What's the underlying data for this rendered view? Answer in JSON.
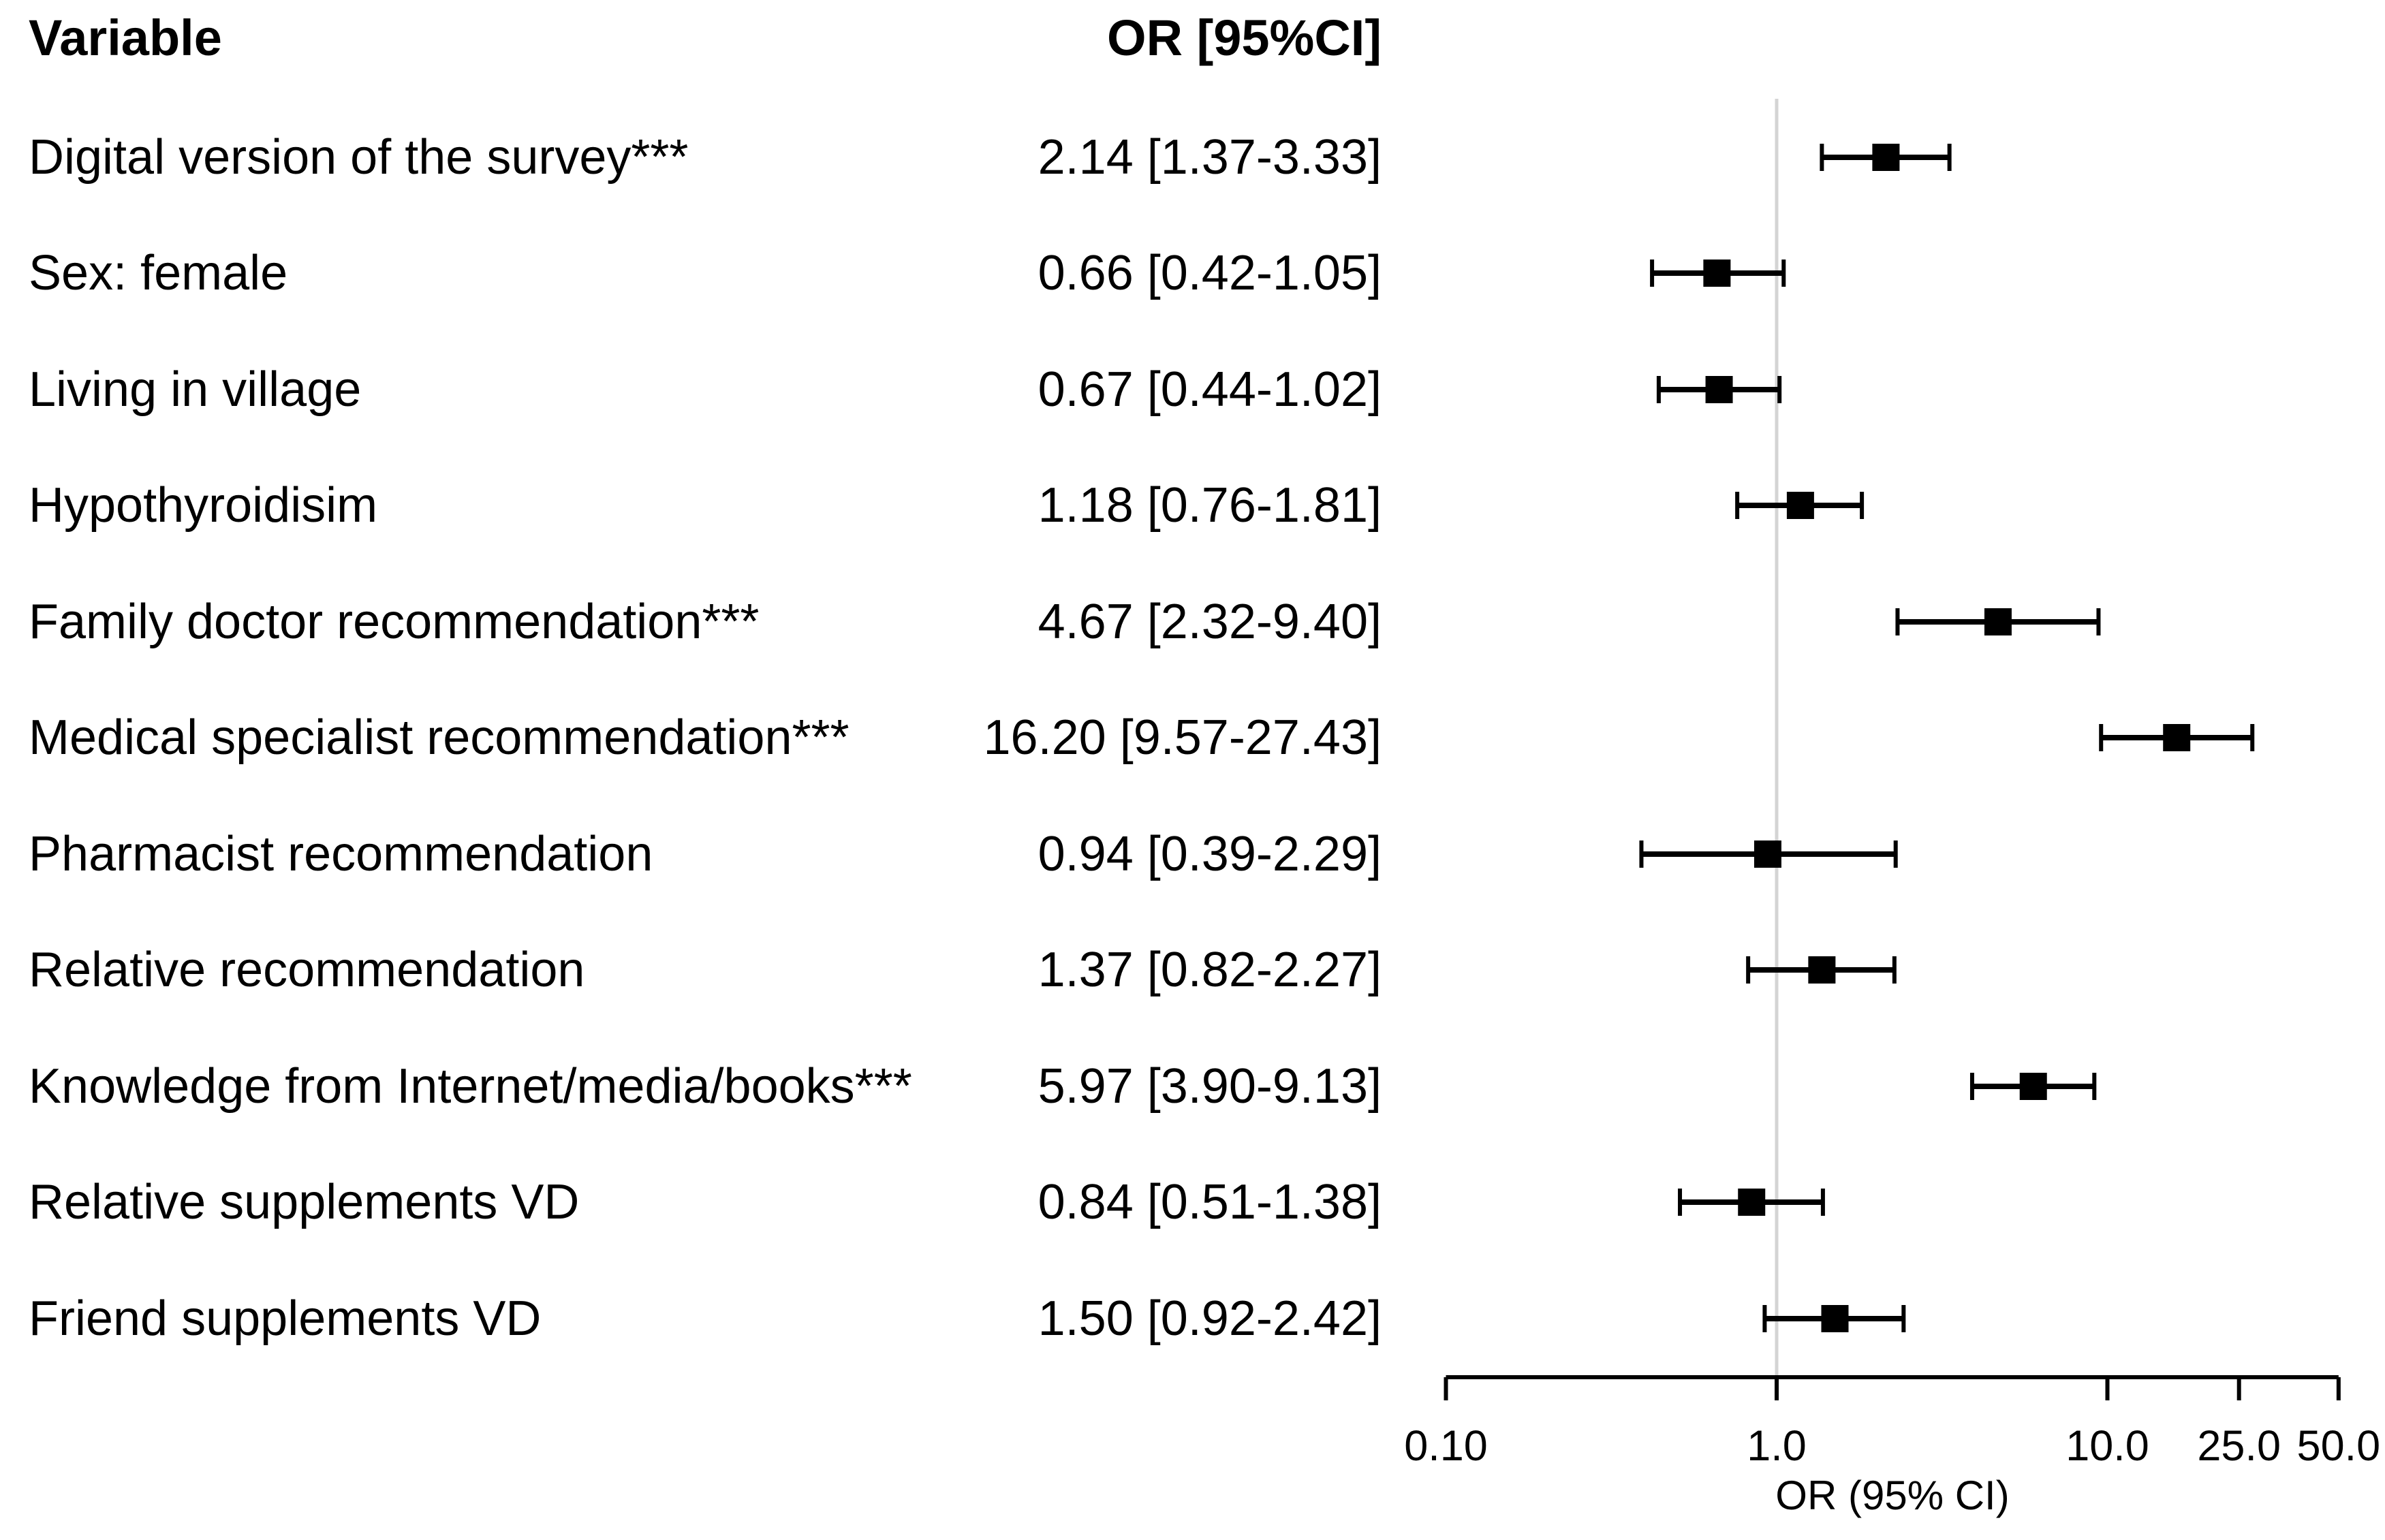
{
  "chart_data": {
    "type": "scatter",
    "variant": "forest-plot",
    "columns": {
      "variable": "Variable",
      "or": "OR [95%CI]"
    },
    "rows": [
      {
        "label": "Digital version of the survey***",
        "or": 2.14,
        "ci_low": 1.37,
        "ci_high": 3.33,
        "or_text": "2.14 [1.37-3.33]"
      },
      {
        "label": "Sex: female",
        "or": 0.66,
        "ci_low": 0.42,
        "ci_high": 1.05,
        "or_text": "0.66 [0.42-1.05]"
      },
      {
        "label": "Living in village",
        "or": 0.67,
        "ci_low": 0.44,
        "ci_high": 1.02,
        "or_text": "0.67 [0.44-1.02]"
      },
      {
        "label": "Hypothyroidisim",
        "or": 1.18,
        "ci_low": 0.76,
        "ci_high": 1.81,
        "or_text": "1.18 [0.76-1.81]"
      },
      {
        "label": "Family doctor recommendation***",
        "or": 4.67,
        "ci_low": 2.32,
        "ci_high": 9.4,
        "or_text": "4.67 [2.32-9.40]"
      },
      {
        "label": "Medical specialist recommendation***",
        "or": 16.2,
        "ci_low": 9.57,
        "ci_high": 27.43,
        "or_text": "16.20 [9.57-27.43]"
      },
      {
        "label": "Pharmacist recommendation",
        "or": 0.94,
        "ci_low": 0.39,
        "ci_high": 2.29,
        "or_text": "0.94 [0.39-2.29]"
      },
      {
        "label": "Relative recommendation",
        "or": 1.37,
        "ci_low": 0.82,
        "ci_high": 2.27,
        "or_text": "1.37 [0.82-2.27]"
      },
      {
        "label": "Knowledge from Internet/media/books***",
        "or": 5.97,
        "ci_low": 3.9,
        "ci_high": 9.13,
        "or_text": "5.97 [3.90-9.13]"
      },
      {
        "label": "Relative supplements VD",
        "or": 0.84,
        "ci_low": 0.51,
        "ci_high": 1.38,
        "or_text": "0.84 [0.51-1.38]"
      },
      {
        "label": "Friend supplements VD",
        "or": 1.5,
        "ci_low": 0.92,
        "ci_high": 2.42,
        "or_text": "1.50 [0.92-2.42]"
      }
    ],
    "xlabel": "OR (95% CI)",
    "x_scale": "log10",
    "xlim": [
      0.1,
      50.0
    ],
    "x_ticks": [
      0.1,
      1.0,
      10.0,
      25.0,
      50.0
    ],
    "x_tick_labels": [
      "0.10",
      "1.0",
      "10.0",
      "25.0",
      "50.0"
    ],
    "reference_line_x": 1.0,
    "grid": false,
    "legend": false,
    "colors": {
      "marker": "#000000",
      "text": "#000000",
      "axis": "#000000",
      "reference_line": "#d4d4d4",
      "background": "#ffffff"
    }
  }
}
